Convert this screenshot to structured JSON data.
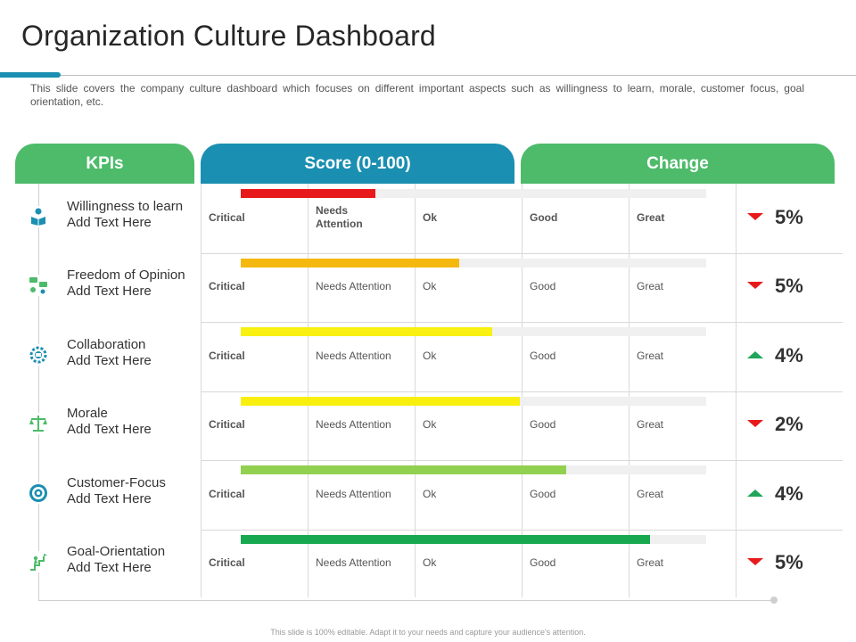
{
  "title": "Organization Culture Dashboard",
  "description": "This slide covers the company culture dashboard which focuses on different important aspects such as willingness to learn, morale, customer focus, goal orientation, etc.",
  "headers": {
    "kpis": "KPIs",
    "score": "Score (0-100)",
    "change": "Change"
  },
  "colors": {
    "green_header": "#4dbb6a",
    "blue_header": "#1a8fb1",
    "down_arrow": "#e8191b",
    "up_arrow": "#1fa65a"
  },
  "rows": [
    {
      "kpi": "Willingness to learn",
      "sub": "Add Text Here",
      "icon": "reading-person-icon",
      "bar_color": "#e8191b",
      "score_fraction": 0.29,
      "levels": [
        "Critical",
        "Needs Attention",
        "Ok",
        "Good",
        "Great"
      ],
      "change_direction": "down",
      "change": "5%"
    },
    {
      "kpi": "Freedom of Opinion",
      "sub": "Add Text Here",
      "icon": "opinion-chat-icon",
      "bar_color": "#f5b80f",
      "score_fraction": 0.47,
      "levels": [
        "Critical",
        "Needs Attention",
        "Ok",
        "Good",
        "Great"
      ],
      "change_direction": "down",
      "change": "5%"
    },
    {
      "kpi": "Collaboration",
      "sub": "Add Text Here",
      "icon": "collaboration-gear-icon",
      "bar_color": "#f8f111",
      "score_fraction": 0.54,
      "levels": [
        "Critical",
        "Needs Attention",
        "Ok",
        "Good",
        "Great"
      ],
      "change_direction": "up",
      "change": "4%"
    },
    {
      "kpi": "Morale",
      "sub": "Add Text Here",
      "icon": "balance-scale-icon",
      "bar_color": "#f8ef0f",
      "score_fraction": 0.6,
      "levels": [
        "Critical",
        "Needs Attention",
        "Ok",
        "Good",
        "Great"
      ],
      "change_direction": "down",
      "change": "2%"
    },
    {
      "kpi": "Customer-Focus",
      "sub": "Add Text Here",
      "icon": "target-focus-icon",
      "bar_color": "#92d050",
      "score_fraction": 0.7,
      "levels": [
        "Critical",
        "Needs Attention",
        "Ok",
        "Good",
        "Great"
      ],
      "change_direction": "up",
      "change": "4%"
    },
    {
      "kpi": "Goal-Orientation",
      "sub": "Add Text Here",
      "icon": "goal-climb-icon",
      "bar_color": "#18a850",
      "score_fraction": 0.88,
      "levels": [
        "Critical",
        "Needs Attention",
        "Ok",
        "Good",
        "Great"
      ],
      "change_direction": "down",
      "change": "5%"
    }
  ],
  "footer": "This slide is 100% editable. Adapt it to your needs and capture your audience's attention."
}
